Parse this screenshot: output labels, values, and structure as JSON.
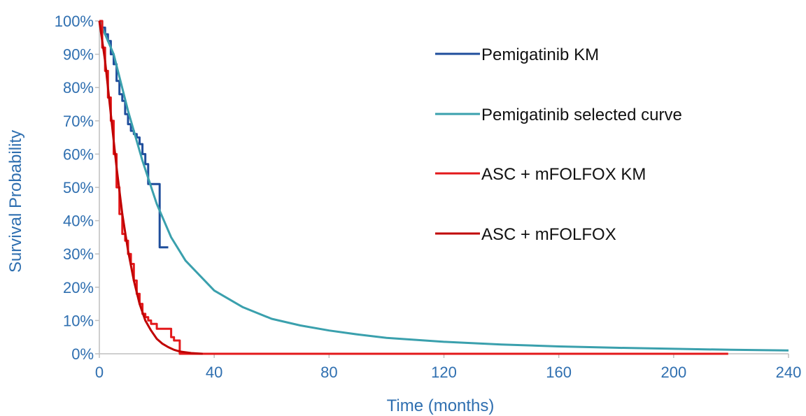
{
  "chart_data": {
    "type": "line",
    "title": "",
    "xlabel": "Time (months)",
    "ylabel": "Survival Probability",
    "xlim": [
      0,
      240
    ],
    "ylim": [
      0,
      100
    ],
    "x_ticks": [
      0,
      40,
      80,
      120,
      160,
      200,
      240
    ],
    "x_tick_labels": [
      "0",
      "40",
      "80",
      "120",
      "160",
      "200",
      "240"
    ],
    "y_ticks": [
      0,
      10,
      20,
      30,
      40,
      50,
      60,
      70,
      80,
      90,
      100
    ],
    "y_tick_labels": [
      "0%",
      "10%",
      "20%",
      "30%",
      "40%",
      "50%",
      "60%",
      "70%",
      "80%",
      "90%",
      "100%"
    ],
    "grid": false,
    "legend_position": "top-right",
    "series": [
      {
        "name": "Pemigatinib KM",
        "color": "#1f4e9c",
        "step": true,
        "x": [
          0,
          1,
          2,
          3,
          4,
          5,
          6,
          7,
          8,
          9,
          10,
          11,
          12,
          13,
          14,
          15,
          16,
          17,
          18,
          19,
          20,
          21,
          22,
          23,
          24
        ],
        "y": [
          100,
          98,
          96,
          94,
          90,
          87,
          82,
          78,
          76,
          72,
          69,
          67,
          66,
          65,
          63,
          60,
          57,
          51,
          51,
          51,
          51,
          32,
          32,
          32,
          32
        ]
      },
      {
        "name": "Pemigatinib selected curve",
        "color": "#3aa0ad",
        "step": false,
        "x": [
          0,
          5,
          10,
          15,
          20,
          25,
          30,
          40,
          50,
          60,
          70,
          80,
          90,
          100,
          120,
          140,
          160,
          180,
          200,
          220,
          240
        ],
        "y": [
          100,
          90,
          73,
          58,
          45,
          35,
          28,
          19,
          14,
          10.5,
          8.5,
          7,
          5.8,
          4.8,
          3.6,
          2.8,
          2.2,
          1.8,
          1.5,
          1.2,
          1
        ]
      },
      {
        "name": "ASC + mFOLFOX KM",
        "color": "#e3191b",
        "step": true,
        "x": [
          0,
          1,
          2,
          3,
          4,
          5,
          6,
          7,
          8,
          9,
          10,
          11,
          12,
          13,
          14,
          15,
          16,
          17,
          18,
          20,
          22,
          24,
          25,
          26,
          27,
          28,
          30,
          40,
          60,
          80,
          120,
          160,
          200,
          219
        ],
        "y": [
          100,
          92,
          85,
          77,
          70,
          60,
          50,
          42,
          36,
          34,
          30,
          27,
          22,
          18,
          15,
          12,
          11,
          10,
          9,
          7.5,
          7.5,
          7.5,
          5,
          4,
          4,
          0,
          0,
          0,
          0,
          0,
          0,
          0,
          0,
          0
        ]
      },
      {
        "name": "ASC + mFOLFOX",
        "color": "#c00000",
        "step": false,
        "x": [
          0,
          2,
          4,
          6,
          8,
          10,
          12,
          14,
          16,
          18,
          20,
          22,
          24,
          26,
          28,
          32,
          36
        ],
        "y": [
          100,
          88,
          72,
          56,
          42,
          31,
          22,
          15,
          10,
          7,
          4.5,
          3,
          2,
          1.2,
          0.7,
          0.2,
          0
        ]
      }
    ]
  }
}
